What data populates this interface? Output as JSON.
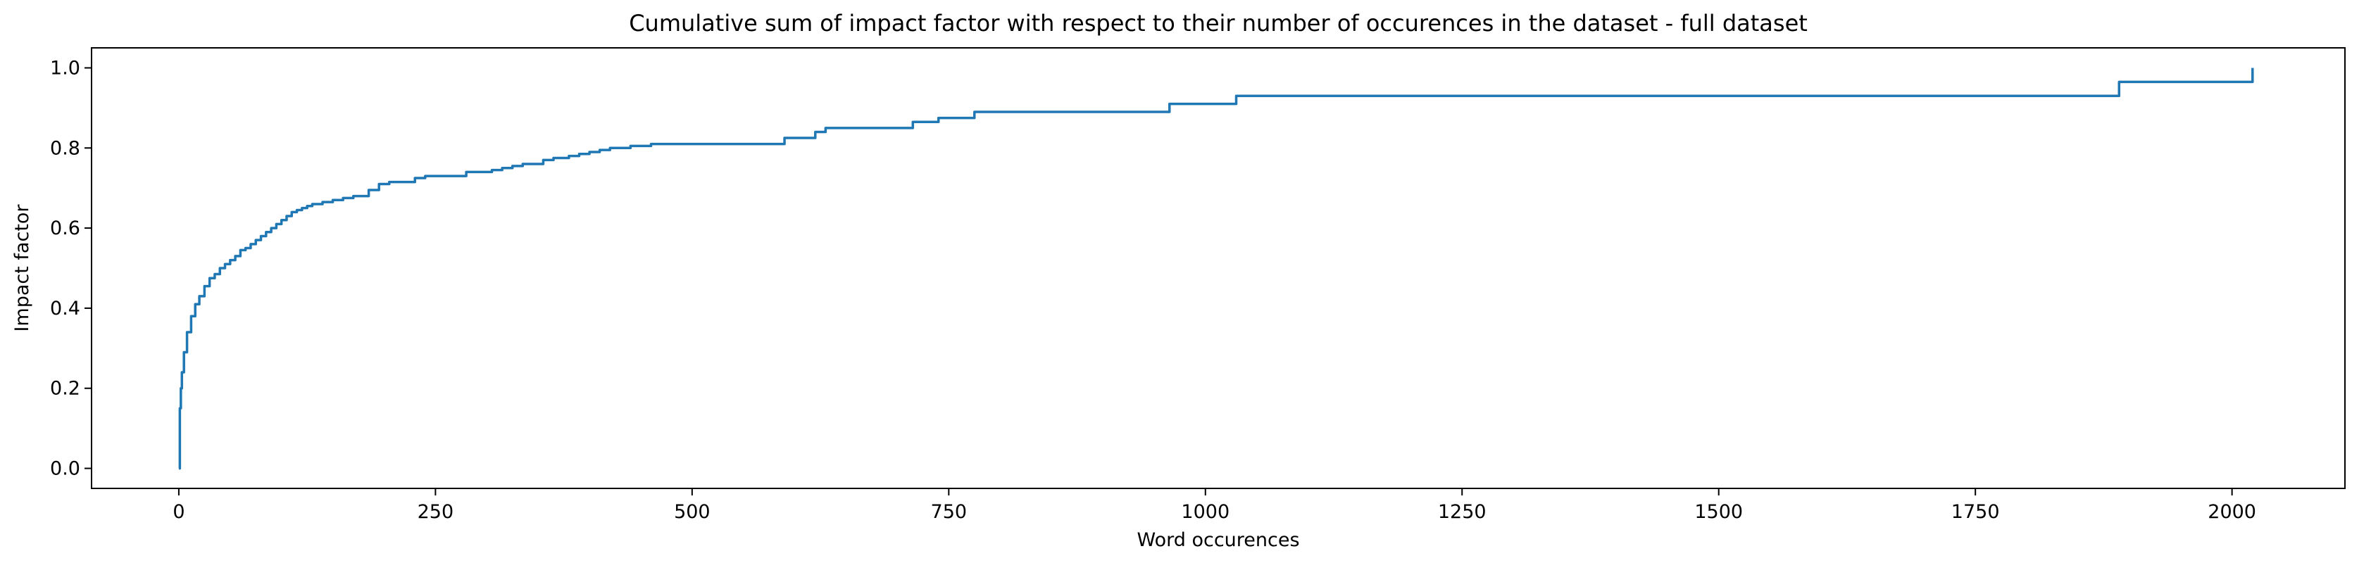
{
  "chart_data": {
    "type": "line",
    "title": "Cumulative sum of impact factor with respect to their number of occurences in the dataset - full dataset",
    "xlabel": "Word occurences",
    "ylabel": "Impact factor",
    "xlim": [
      -85,
      2110
    ],
    "ylim": [
      -0.05,
      1.05
    ],
    "xticks": [
      0,
      250,
      500,
      750,
      1000,
      1250,
      1500,
      1750,
      2000
    ],
    "xtick_labels": [
      "0",
      "250",
      "500",
      "750",
      "1000",
      "1250",
      "1500",
      "1750",
      "2000"
    ],
    "yticks": [
      0.0,
      0.2,
      0.4,
      0.6,
      0.8,
      1.0
    ],
    "ytick_labels": [
      "0.0",
      "0.2",
      "0.4",
      "0.6",
      "0.8",
      "1.0"
    ],
    "grid": false,
    "color": "#1f77b4",
    "step": true,
    "x": [
      0,
      1,
      2,
      3,
      5,
      8,
      12,
      16,
      20,
      25,
      30,
      35,
      40,
      45,
      50,
      55,
      60,
      65,
      70,
      75,
      80,
      85,
      90,
      95,
      100,
      105,
      110,
      115,
      120,
      125,
      130,
      140,
      150,
      160,
      170,
      185,
      195,
      205,
      230,
      240,
      280,
      305,
      315,
      325,
      335,
      355,
      365,
      380,
      390,
      400,
      410,
      420,
      440,
      460,
      590,
      620,
      630,
      715,
      740,
      775,
      965,
      1030,
      1890,
      2020,
      2020
    ],
    "y": [
      0.0,
      0.15,
      0.2,
      0.24,
      0.29,
      0.34,
      0.38,
      0.41,
      0.43,
      0.455,
      0.475,
      0.485,
      0.5,
      0.51,
      0.52,
      0.53,
      0.545,
      0.55,
      0.56,
      0.57,
      0.58,
      0.59,
      0.6,
      0.61,
      0.62,
      0.63,
      0.64,
      0.645,
      0.65,
      0.655,
      0.66,
      0.665,
      0.67,
      0.675,
      0.68,
      0.695,
      0.71,
      0.715,
      0.725,
      0.73,
      0.74,
      0.745,
      0.75,
      0.755,
      0.76,
      0.77,
      0.775,
      0.78,
      0.785,
      0.79,
      0.795,
      0.8,
      0.805,
      0.81,
      0.825,
      0.84,
      0.85,
      0.865,
      0.875,
      0.89,
      0.91,
      0.93,
      0.965,
      0.965,
      1.0
    ]
  }
}
